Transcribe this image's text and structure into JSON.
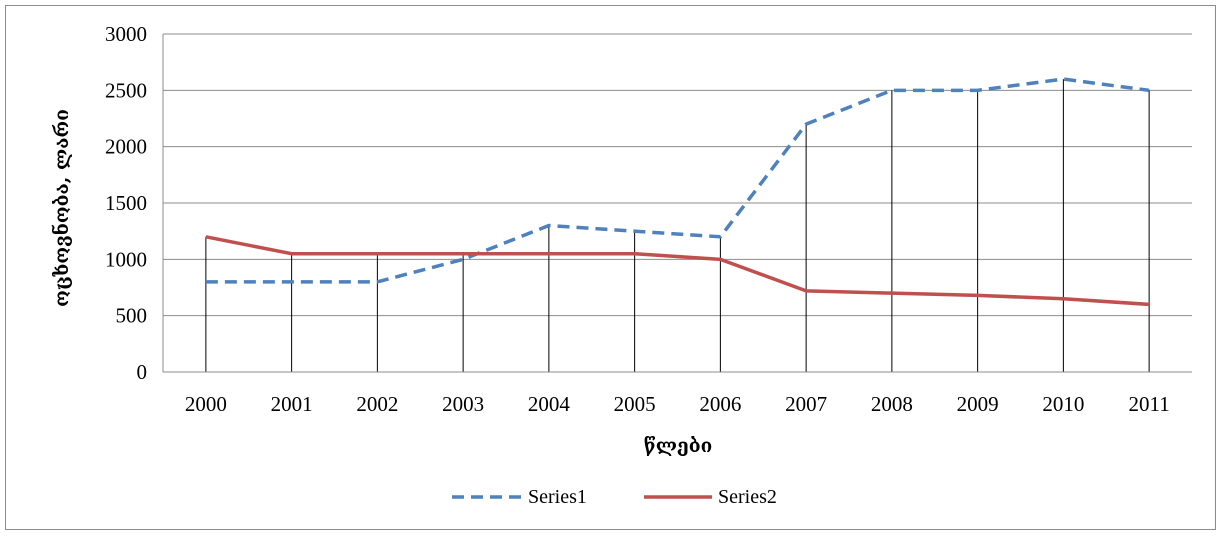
{
  "chart_data": {
    "type": "line",
    "title": "",
    "xlabel": "წლები",
    "ylabel": "ოცხოვნობა, ლარი",
    "x": [
      "2000",
      "2001",
      "2002",
      "2003",
      "2004",
      "2005",
      "2006",
      "2007",
      "2008",
      "2009",
      "2010",
      "2011"
    ],
    "y_ticks": [
      "0",
      "500",
      "1000",
      "1500",
      "2000",
      "2500",
      "3000"
    ],
    "ylim": [
      0,
      3000
    ],
    "grid": "horizontal major gridlines; vertical drop lines at each year",
    "legend_position": "bottom",
    "series": [
      {
        "name": "Series1",
        "style": "dashed",
        "color": "#4f81bd",
        "values": [
          800,
          800,
          800,
          1000,
          1300,
          1250,
          1200,
          2200,
          2500,
          2500,
          2600,
          2500
        ]
      },
      {
        "name": "Series2",
        "style": "solid",
        "color": "#c0504d",
        "values": [
          1200,
          1050,
          1050,
          1050,
          1050,
          1050,
          1000,
          720,
          700,
          680,
          650,
          600
        ]
      }
    ]
  }
}
